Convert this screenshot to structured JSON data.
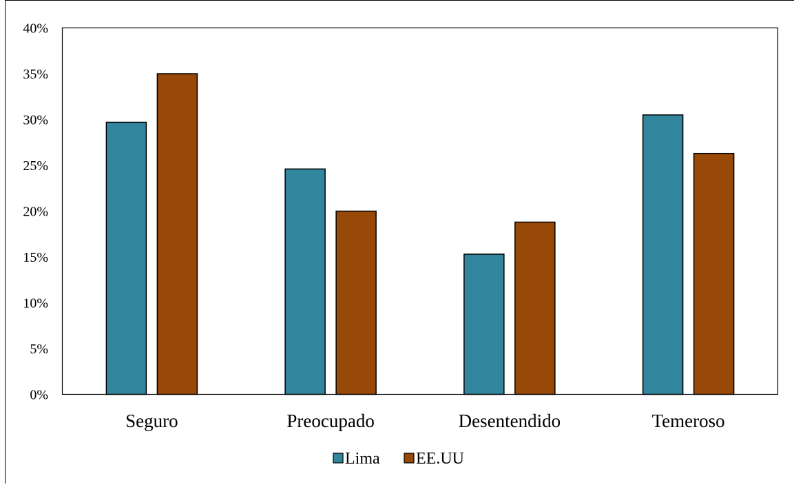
{
  "chart_data": {
    "type": "bar",
    "title": "",
    "xlabel": "",
    "ylabel": "",
    "categories": [
      "Seguro",
      "Preocupado",
      "Desentendido",
      "Temeroso"
    ],
    "series": [
      {
        "name": "Lima",
        "values": [
          29.7,
          24.6,
          15.3,
          30.5
        ],
        "color": "#31859C"
      },
      {
        "name": "EE.UU",
        "values": [
          35.0,
          20.0,
          18.8,
          26.3
        ],
        "color": "#984807"
      }
    ],
    "ylim": [
      0,
      40
    ],
    "yticks": [
      0,
      5,
      10,
      15,
      20,
      25,
      30,
      35,
      40
    ],
    "ytick_labels": [
      "0%",
      "5%",
      "10%",
      "15%",
      "20%",
      "25%",
      "30%",
      "35%",
      "40%"
    ],
    "grid": false,
    "legend_position": "bottom-center"
  }
}
